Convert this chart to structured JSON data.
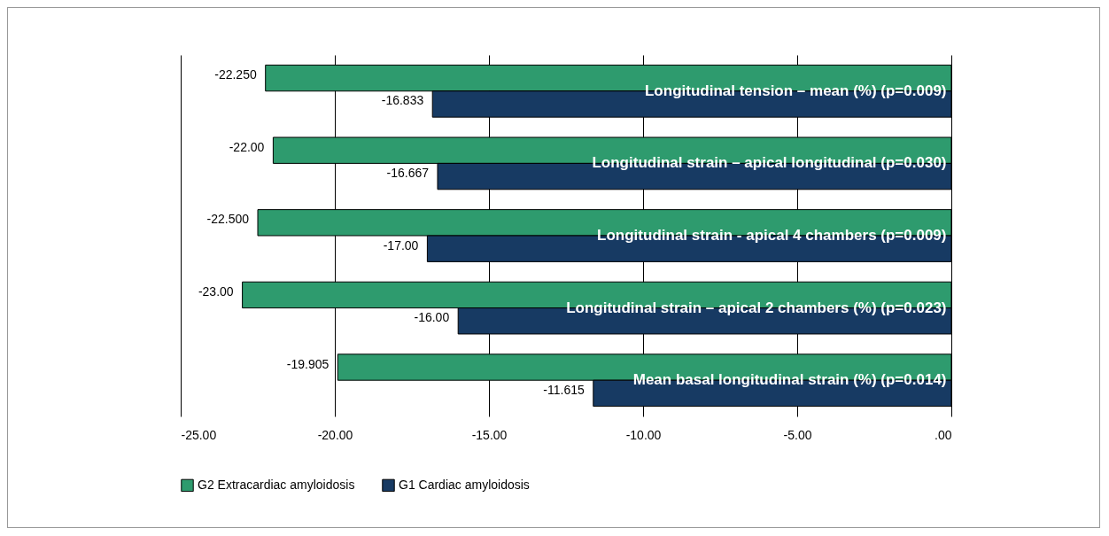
{
  "chart_data": {
    "type": "bar",
    "orientation": "horizontal",
    "categories": [
      "Longitudinal tension – mean (%) (p=0.009)",
      "Longitudinal strain – apical longitudinal (p=0.030)",
      "Longitudinal strain - apical 4 chambers (p=0.009)",
      "Longitudinal strain – apical 2 chambers (%) (p=0.023)",
      "Mean basal longitudinal strain (%) (p=0.014)"
    ],
    "series": [
      {
        "name": "G2 Extracardiac amyloidosis",
        "color": "#2e9b6e",
        "values": [
          -22.25,
          -22,
          -22.5,
          -23,
          -19.905
        ],
        "value_labels": [
          "-22.250",
          "-22.00",
          "-22.500",
          "-23.00",
          "-19.905"
        ]
      },
      {
        "name": "G1 Cardiac amyloidosis",
        "color": "#173a63",
        "values": [
          -16.833,
          -16.667,
          -17,
          -16,
          -11.615
        ],
        "value_labels": [
          "-16.833",
          "-16.667",
          "-17.00",
          "-16.00",
          "-11.615"
        ]
      }
    ],
    "xlim": [
      -25,
      0
    ],
    "xticks": [
      {
        "value": -25,
        "label": "-25.00"
      },
      {
        "value": -20,
        "label": "-20.00"
      },
      {
        "value": -15,
        "label": "-15.00"
      },
      {
        "value": -10,
        "label": "-10.00"
      },
      {
        "value": -5,
        "label": "-5.00"
      },
      {
        "value": 0,
        "label": ".00"
      }
    ],
    "grid": "x",
    "legend": "bottom"
  }
}
